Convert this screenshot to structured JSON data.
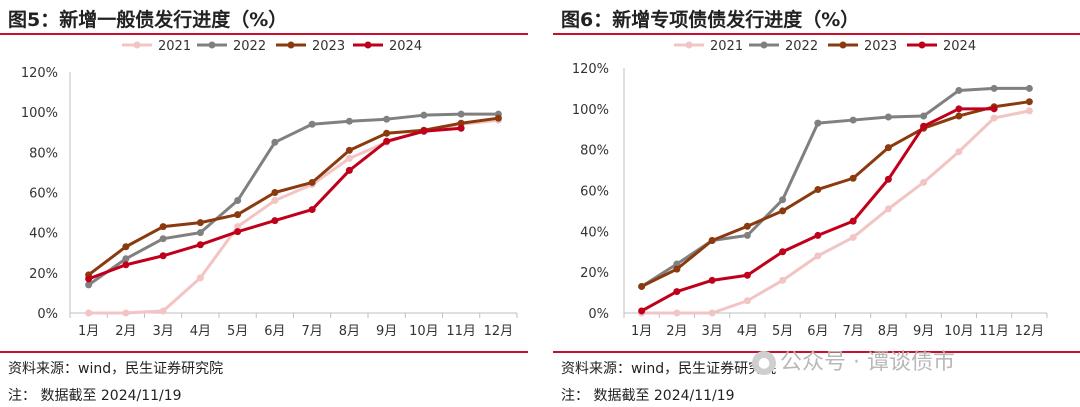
{
  "chart_data": [
    {
      "type": "line",
      "title": "图5：新增一般债发行进度（%）",
      "categories": [
        "1月",
        "2月",
        "3月",
        "4月",
        "5月",
        "6月",
        "7月",
        "8月",
        "9月",
        "10月",
        "11月",
        "12月"
      ],
      "y_ticks": [
        "0%",
        "20%",
        "40%",
        "60%",
        "80%",
        "100%",
        "120%"
      ],
      "ylim": [
        0,
        120
      ],
      "legend_position": "top",
      "series": [
        {
          "name": "2021",
          "color": "#f2c4c4",
          "values": [
            0,
            0,
            1,
            17.5,
            43,
            56,
            64,
            77,
            85,
            91,
            94,
            96
          ]
        },
        {
          "name": "2022",
          "color": "#808080",
          "values": [
            14,
            27,
            37,
            40,
            56,
            85,
            94,
            95.5,
            96.5,
            98.5,
            99,
            99
          ]
        },
        {
          "name": "2023",
          "color": "#8b3a0f",
          "values": [
            19,
            33,
            43,
            45,
            49,
            60,
            65,
            81,
            89.5,
            91,
            94.5,
            97
          ]
        },
        {
          "name": "2024",
          "color": "#c0001a",
          "values": [
            17,
            24,
            28.5,
            34,
            40.5,
            46,
            51.5,
            71,
            85.5,
            90.5,
            92,
            null
          ]
        }
      ],
      "source": "资料来源：wind，民生证券研究院",
      "note": "注：  数据截至 2024/11/19"
    },
    {
      "type": "line",
      "title": "图6：新增专项债债发行进度（%）",
      "categories": [
        "1月",
        "2月",
        "3月",
        "4月",
        "5月",
        "6月",
        "7月",
        "8月",
        "9月",
        "10月",
        "11月",
        "12月"
      ],
      "y_ticks": [
        "0%",
        "20%",
        "40%",
        "60%",
        "80%",
        "100%",
        "120%"
      ],
      "ylim": [
        0,
        120
      ],
      "legend_position": "top",
      "series": [
        {
          "name": "2021",
          "color": "#f2c4c4",
          "values": [
            0,
            0,
            0,
            6,
            16,
            28,
            37,
            51,
            64,
            79,
            95.5,
            99
          ]
        },
        {
          "name": "2022",
          "color": "#808080",
          "values": [
            13,
            24,
            35.5,
            38,
            55.5,
            93,
            94.5,
            96,
            96.5,
            109,
            110,
            110
          ]
        },
        {
          "name": "2023",
          "color": "#8b3a0f",
          "values": [
            13,
            21.5,
            35.5,
            42.5,
            50,
            60.5,
            66,
            81,
            90.5,
            96.5,
            101,
            103.5
          ]
        },
        {
          "name": "2024",
          "color": "#c0001a",
          "values": [
            1,
            10.5,
            16,
            18.5,
            30,
            38,
            45,
            65.5,
            91.5,
            100,
            100,
            null
          ]
        }
      ],
      "source": "资料来源：wind，民生证券研究院",
      "note": "注：  数据截至 2024/11/19"
    }
  ],
  "watermark": {
    "icon": "wechat-icon",
    "text": "公众号 · 谭谈债市"
  }
}
